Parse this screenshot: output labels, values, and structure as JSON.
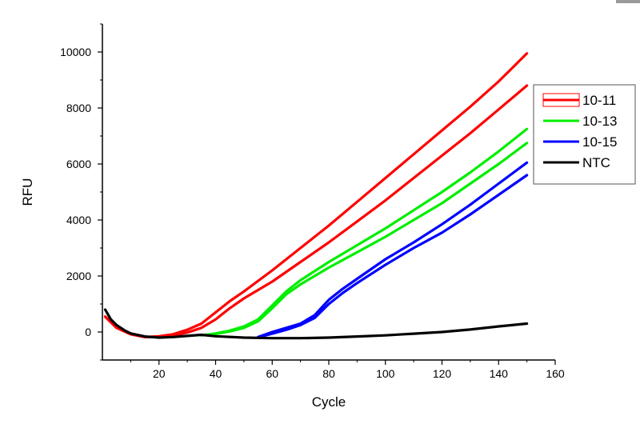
{
  "chart_data": {
    "type": "line",
    "title": "",
    "xlabel": "Cycle",
    "ylabel": "RFU",
    "xlim": [
      0,
      160
    ],
    "ylim": [
      -1000,
      11000
    ],
    "xticks": [
      20,
      40,
      60,
      80,
      100,
      120,
      140,
      160
    ],
    "xtick_labels": [
      "20",
      "40",
      "60",
      "80",
      "100",
      "120",
      "140",
      "160"
    ],
    "xminor": [
      10,
      30,
      50,
      70,
      90,
      110,
      130,
      150
    ],
    "yticks": [
      0,
      2000,
      4000,
      6000,
      8000,
      10000
    ],
    "ytick_labels": [
      "0",
      "2000",
      "4000",
      "6000",
      "8000",
      "10000"
    ],
    "yminor": [
      -1000,
      1000,
      3000,
      5000,
      7000,
      9000,
      11000
    ],
    "grid": false,
    "legend_position": "right",
    "legend": [
      {
        "label": "10-11",
        "color": "#ff0000",
        "style": "boxed"
      },
      {
        "label": "10-13",
        "color": "#00ee00",
        "style": "line"
      },
      {
        "label": "10-15",
        "color": "#0000ff",
        "style": "line"
      },
      {
        "label": "NTC",
        "color": "#000000",
        "style": "line"
      }
    ],
    "series": [
      {
        "name": "10-11",
        "color": "#ff0000",
        "x": [
          1,
          5,
          10,
          15,
          20,
          25,
          30,
          35,
          40,
          45,
          50,
          60,
          70,
          80,
          90,
          100,
          110,
          120,
          130,
          140,
          150
        ],
        "y": [
          550,
          150,
          -80,
          -180,
          -150,
          -80,
          80,
          300,
          700,
          1100,
          1450,
          2200,
          3000,
          3800,
          4650,
          5500,
          6350,
          7200,
          8050,
          8950,
          9950
        ]
      },
      {
        "name": "10-11",
        "color": "#ff0000",
        "x": [
          1,
          5,
          10,
          15,
          20,
          25,
          30,
          35,
          40,
          45,
          50,
          60,
          70,
          80,
          90,
          100,
          110,
          120,
          130,
          140,
          150
        ],
        "y": [
          550,
          150,
          -80,
          -180,
          -180,
          -130,
          -20,
          150,
          450,
          850,
          1200,
          1800,
          2500,
          3200,
          3950,
          4700,
          5500,
          6300,
          7100,
          7950,
          8800
        ]
      },
      {
        "name": "10-13",
        "color": "#00ee00",
        "x": [
          35,
          40,
          45,
          50,
          55,
          60,
          65,
          70,
          80,
          90,
          100,
          110,
          120,
          130,
          140,
          150
        ],
        "y": [
          -120,
          -50,
          50,
          200,
          450,
          950,
          1450,
          1850,
          2500,
          3100,
          3700,
          4350,
          5000,
          5700,
          6450,
          7250
        ]
      },
      {
        "name": "10-13",
        "color": "#00ee00",
        "x": [
          35,
          40,
          45,
          50,
          55,
          60,
          65,
          70,
          80,
          90,
          100,
          110,
          120,
          130,
          140,
          150
        ],
        "y": [
          -120,
          -70,
          20,
          150,
          380,
          850,
          1350,
          1700,
          2300,
          2850,
          3400,
          4000,
          4600,
          5300,
          6000,
          6750
        ]
      },
      {
        "name": "10-15",
        "color": "#0000ff",
        "x": [
          55,
          60,
          65,
          70,
          75,
          80,
          85,
          90,
          100,
          110,
          120,
          130,
          140,
          150
        ],
        "y": [
          -180,
          0,
          150,
          300,
          600,
          1150,
          1550,
          1900,
          2600,
          3200,
          3850,
          4550,
          5300,
          6050
        ]
      },
      {
        "name": "10-15",
        "color": "#0000ff",
        "x": [
          55,
          60,
          65,
          70,
          75,
          80,
          85,
          90,
          100,
          110,
          120,
          130,
          140,
          150
        ],
        "y": [
          -190,
          -60,
          80,
          250,
          500,
          1000,
          1400,
          1750,
          2400,
          3000,
          3550,
          4200,
          4900,
          5600
        ]
      },
      {
        "name": "NTC",
        "color": "#000000",
        "x": [
          1,
          3,
          5,
          8,
          10,
          15,
          20,
          25,
          30,
          35,
          40,
          50,
          60,
          70,
          80,
          90,
          100,
          110,
          120,
          130,
          140,
          150
        ],
        "y": [
          800,
          450,
          250,
          50,
          -50,
          -160,
          -200,
          -180,
          -140,
          -100,
          -150,
          -200,
          -220,
          -220,
          -200,
          -160,
          -120,
          -60,
          0,
          90,
          200,
          300
        ]
      }
    ]
  }
}
